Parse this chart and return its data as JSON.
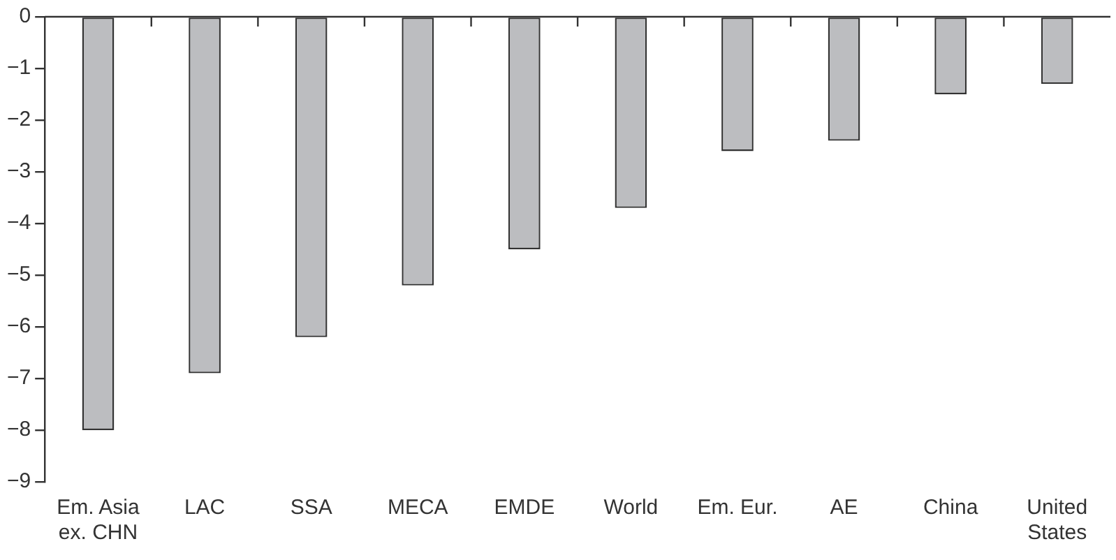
{
  "chart_data": {
    "type": "bar",
    "categories": [
      "Em. Asia ex. CHN",
      "LAC",
      "SSA",
      "MECA",
      "EMDE",
      "World",
      "Em. Eur.",
      "AE",
      "China",
      "United States"
    ],
    "values": [
      -8.0,
      -6.9,
      -6.2,
      -5.2,
      -4.5,
      -3.7,
      -2.6,
      -2.4,
      -1.5,
      -1.3
    ],
    "color": "#bcbdc0",
    "ylim": [
      -9,
      0
    ],
    "yticks": [
      {
        "value": -9,
        "label": "−9"
      },
      {
        "value": -8,
        "label": "−8"
      },
      {
        "value": -7,
        "label": "−7"
      },
      {
        "value": -6,
        "label": "−6"
      },
      {
        "value": -5,
        "label": "−5"
      },
      {
        "value": -4,
        "label": "−4"
      },
      {
        "value": -3,
        "label": "−3"
      },
      {
        "value": -2,
        "label": "−2"
      },
      {
        "value": -1,
        "label": "−1"
      },
      0
    ],
    "grid": false,
    "legend": false
  }
}
